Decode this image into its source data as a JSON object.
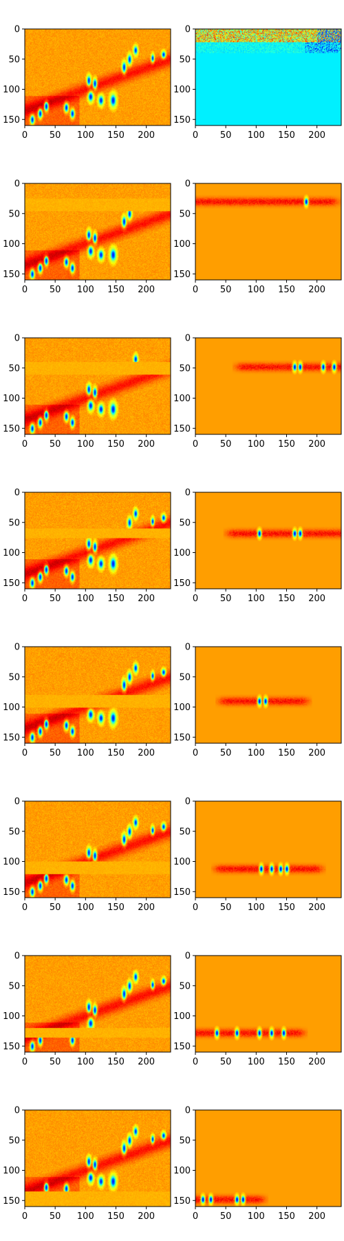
{
  "chart_data": {
    "type": "heatmap",
    "colormap": "jet",
    "colors": {
      "jet": [
        "#00007f",
        "#0000ff",
        "#007fff",
        "#00ffff",
        "#7fff7f",
        "#ffff00",
        "#ff7f00",
        "#ff0000",
        "#7f0000"
      ],
      "background": "#ffffff"
    },
    "grid": false,
    "layout": {
      "rows": 8,
      "cols": 2
    },
    "axes_common": {
      "xlim": [
        0,
        240
      ],
      "ylim": [
        160,
        0
      ],
      "x_ticks": [
        0,
        50,
        100,
        150,
        200
      ],
      "y_ticks": [
        0,
        50,
        100,
        150
      ],
      "x_tick_labels": [
        "0",
        "50",
        "100",
        "150",
        "200"
      ],
      "y_tick_labels": [
        "0",
        "50",
        "100",
        "150"
      ]
    },
    "field": {
      "stripes": [
        {
          "x0": 0,
          "x1": 240,
          "y_left": 135,
          "y_right": 50,
          "width": 18,
          "strength": 0.9
        }
      ],
      "blobs": [
        {
          "x": 12,
          "y": 150,
          "rx": 4,
          "ry": 9
        },
        {
          "x": 25,
          "y": 140,
          "rx": 4,
          "ry": 9
        },
        {
          "x": 35,
          "y": 128,
          "rx": 4,
          "ry": 9
        },
        {
          "x": 68,
          "y": 130,
          "rx": 4,
          "ry": 9
        },
        {
          "x": 78,
          "y": 140,
          "rx": 4,
          "ry": 9
        },
        {
          "x": 105,
          "y": 85,
          "rx": 4,
          "ry": 10
        },
        {
          "x": 115,
          "y": 90,
          "rx": 4,
          "ry": 10
        },
        {
          "x": 108,
          "y": 112,
          "rx": 5,
          "ry": 10
        },
        {
          "x": 125,
          "y": 118,
          "rx": 5,
          "ry": 10
        },
        {
          "x": 145,
          "y": 118,
          "rx": 6,
          "ry": 13
        },
        {
          "x": 163,
          "y": 63,
          "rx": 4,
          "ry": 11
        },
        {
          "x": 172,
          "y": 50,
          "rx": 4,
          "ry": 10
        },
        {
          "x": 182,
          "y": 35,
          "rx": 4,
          "ry": 9
        },
        {
          "x": 210,
          "y": 48,
          "rx": 3,
          "ry": 8
        },
        {
          "x": 228,
          "y": 42,
          "rx": 4,
          "ry": 7
        }
      ]
    },
    "panels": [
      {
        "row": 0,
        "col": 0,
        "kind": "composite",
        "suppress_band": null
      },
      {
        "row": 0,
        "col": 1,
        "kind": "top_band",
        "band_y": 10,
        "band_height": 10
      },
      {
        "row": 1,
        "col": 0,
        "kind": "composite",
        "suppress_band": [
          25,
          45
        ]
      },
      {
        "row": 1,
        "col": 1,
        "kind": "band",
        "band_y": 30,
        "band_width": 220,
        "band_center_x": 110,
        "blobs_x": [
          182
        ]
      },
      {
        "row": 2,
        "col": 0,
        "kind": "composite",
        "suppress_band": [
          40,
          60
        ]
      },
      {
        "row": 2,
        "col": 1,
        "kind": "band",
        "band_y": 48,
        "band_width": 200,
        "band_center_x": 180,
        "blobs_x": [
          163,
          172,
          210,
          228
        ]
      },
      {
        "row": 3,
        "col": 0,
        "kind": "composite",
        "suppress_band": [
          60,
          75
        ]
      },
      {
        "row": 3,
        "col": 1,
        "kind": "band",
        "band_y": 68,
        "band_width": 170,
        "band_center_x": 150,
        "blobs_x": [
          105,
          163,
          172
        ]
      },
      {
        "row": 4,
        "col": 0,
        "kind": "composite",
        "suppress_band": [
          80,
          100
        ]
      },
      {
        "row": 4,
        "col": 1,
        "kind": "band",
        "band_y": 90,
        "band_width": 120,
        "band_center_x": 112,
        "blobs_x": [
          105,
          115
        ]
      },
      {
        "row": 5,
        "col": 0,
        "kind": "composite",
        "suppress_band": [
          100,
          120
        ]
      },
      {
        "row": 5,
        "col": 1,
        "kind": "band",
        "band_y": 112,
        "band_width": 150,
        "band_center_x": 120,
        "blobs_x": [
          108,
          125,
          140,
          150
        ]
      },
      {
        "row": 6,
        "col": 0,
        "kind": "composite",
        "suppress_band": [
          120,
          135
        ]
      },
      {
        "row": 6,
        "col": 1,
        "kind": "band",
        "band_y": 128,
        "band_width": 170,
        "band_center_x": 80,
        "blobs_x": [
          35,
          68,
          105,
          125,
          145
        ]
      },
      {
        "row": 7,
        "col": 0,
        "kind": "composite",
        "suppress_band": [
          135,
          160
        ]
      },
      {
        "row": 7,
        "col": 1,
        "kind": "band",
        "band_y": 148,
        "band_width": 120,
        "band_center_x": 40,
        "blobs_x": [
          12,
          25,
          68,
          78
        ]
      }
    ]
  }
}
